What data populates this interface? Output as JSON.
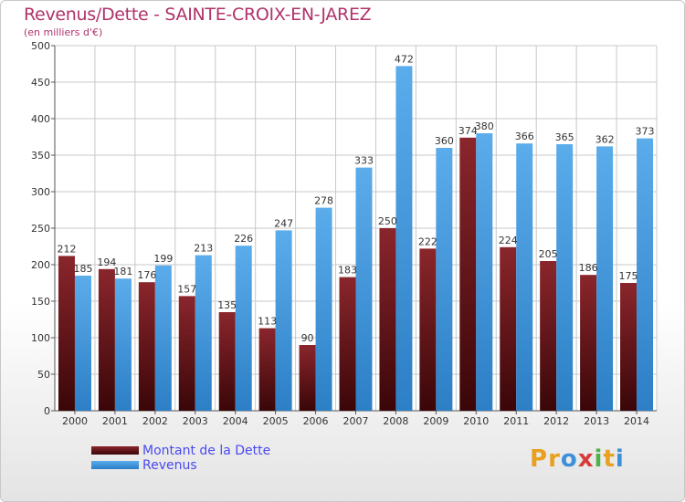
{
  "title": "Revenus/Dette - SAINTE-CROIX-EN-JAREZ",
  "subtitle": "(en milliers d'€)",
  "colors": {
    "dette": "#7a1f24",
    "revenus": "#4fa3e3",
    "title": "#b0326a",
    "legend_text": "#4a4af0"
  },
  "chart_data": {
    "type": "bar",
    "categories": [
      "2000",
      "2001",
      "2002",
      "2003",
      "2004",
      "2005",
      "2006",
      "2007",
      "2008",
      "2009",
      "2010",
      "2011",
      "2012",
      "2013",
      "2014"
    ],
    "series": [
      {
        "name": "Montant de la Dette",
        "values": [
          212,
          194,
          176,
          157,
          135,
          113,
          90,
          183,
          250,
          222,
          374,
          224,
          205,
          186,
          175
        ]
      },
      {
        "name": "Revenus",
        "values": [
          185,
          181,
          199,
          213,
          226,
          247,
          278,
          333,
          472,
          360,
          380,
          366,
          365,
          362,
          373
        ]
      }
    ],
    "yticks": [
      0,
      50,
      100,
      150,
      200,
      250,
      300,
      350,
      400,
      450,
      500
    ],
    "ylim": [
      0,
      500
    ],
    "grid": true,
    "legend_position": "bottom-left"
  },
  "legend": [
    {
      "label": "Montant de la Dette"
    },
    {
      "label": "Revenus"
    }
  ],
  "logo": {
    "letters": [
      "P",
      "r",
      "o",
      "x",
      "i",
      "t",
      "i"
    ],
    "colors": [
      "#e8a020",
      "#e8a020",
      "#3d8fd8",
      "#d83a3a",
      "#52b04a",
      "#e8a020",
      "#3d8fd8"
    ]
  }
}
